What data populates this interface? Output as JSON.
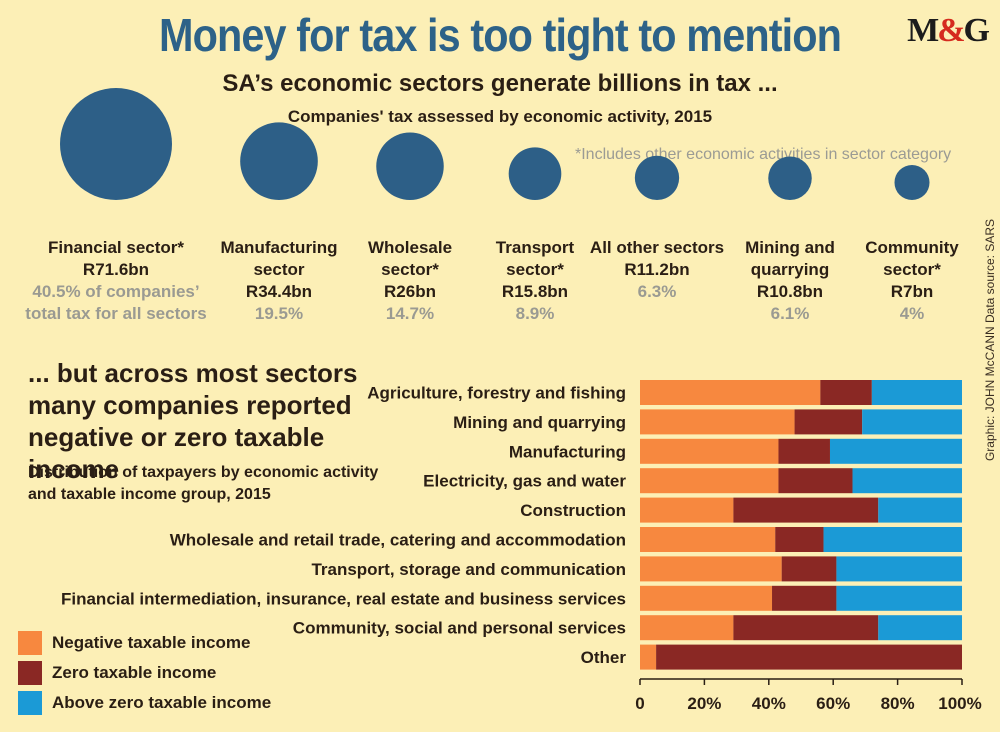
{
  "header": {
    "title": "Money for tax is too tight to mention",
    "logo_text": "M&G",
    "subtitle": "SA’s economic sectors generate billions in tax ...",
    "chart1_title": "Companies' tax assessed by economic activity, 2015",
    "footnote": "*Includes other economic activities in sector category"
  },
  "credit": "Graphic: JOHN McCANN  Data source: SARS",
  "colors": {
    "circle": "#2d5f87",
    "negative": "#f7883f",
    "zero": "#8a2824",
    "above": "#1b9ad6"
  },
  "chart_data": [
    {
      "type": "bubble",
      "title": "Companies' tax assessed by economic activity, 2015",
      "unit": "R bn",
      "items": [
        {
          "name": "Financial sector*",
          "value": 71.6,
          "value_label": "R71.6bn",
          "share_pct": 40.5,
          "share_label": "40.5% of companies’ total tax for all sectors"
        },
        {
          "name": "Manufacturing sector",
          "value": 34.4,
          "value_label": "R34.4bn",
          "share_pct": 19.5,
          "share_label": "19.5%"
        },
        {
          "name": "Wholesale sector*",
          "value": 26,
          "value_label": "R26bn",
          "share_pct": 14.7,
          "share_label": "14.7%"
        },
        {
          "name": "Transport sector*",
          "value": 15.8,
          "value_label": "R15.8bn",
          "share_pct": 8.9,
          "share_label": "8.9%"
        },
        {
          "name": "All other sectors",
          "value": 11.2,
          "value_label": "R11.2bn",
          "share_pct": 6.3,
          "share_label": "6.3%"
        },
        {
          "name": "Mining and quarrying",
          "value": 10.8,
          "value_label": "R10.8bn",
          "share_pct": 6.1,
          "share_label": "6.1%"
        },
        {
          "name": "Community sector*",
          "value": 7,
          "value_label": "R7bn",
          "share_pct": 4,
          "share_label": "4%"
        }
      ]
    },
    {
      "type": "bar",
      "stacked": true,
      "orientation": "horizontal",
      "title": "... but across most sectors many companies reported negative or zero taxable income",
      "subtitle": "Distribution of taxpayers by economic activity and taxable income group, 2015",
      "categories": [
        "Agriculture, forestry and fishing",
        "Mining and quarrying",
        "Manufacturing",
        "Electricity, gas and water",
        "Construction",
        "Wholesale and retail trade, catering and accommodation",
        "Transport, storage and communication",
        "Financial intermediation, insurance, real estate and business services",
        "Community, social and personal services",
        "Other"
      ],
      "series": [
        {
          "name": "Negative taxable income",
          "values": [
            56,
            48,
            43,
            43,
            29,
            42,
            44,
            41,
            29,
            5
          ]
        },
        {
          "name": "Zero taxable income",
          "values": [
            16,
            21,
            16,
            23,
            45,
            15,
            17,
            20,
            45,
            95
          ]
        },
        {
          "name": "Above zero taxable income",
          "values": [
            28,
            31,
            41,
            34,
            26,
            43,
            39,
            39,
            26,
            0
          ]
        }
      ],
      "xlim": [
        0,
        100
      ],
      "xticks": [
        "0",
        "20%",
        "40%",
        "60%",
        "80%",
        "100%"
      ],
      "legend": "bottom-left"
    }
  ]
}
